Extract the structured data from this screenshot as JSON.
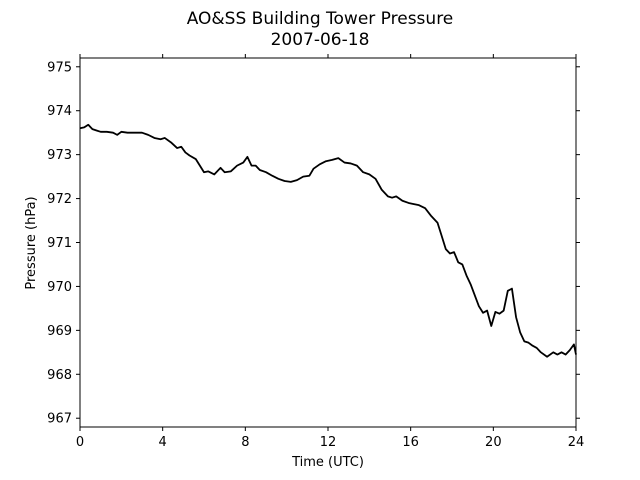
{
  "chart_data": {
    "type": "line",
    "title": "AO&SS Building Tower Pressure",
    "subtitle": "2007-06-18",
    "xlabel": "Time (UTC)",
    "ylabel": "Pressure (hPa)",
    "xlim": [
      0,
      24
    ],
    "ylim": [
      966.8,
      975.2
    ],
    "xticks": [
      0,
      4,
      8,
      12,
      16,
      20,
      24
    ],
    "yticks": [
      967,
      968,
      969,
      970,
      971,
      972,
      973,
      974,
      975
    ],
    "grid": false,
    "line_color": "#000000",
    "series": [
      {
        "x": [
          0.0,
          0.2,
          0.4,
          0.6,
          0.8,
          1.0,
          1.3,
          1.6,
          1.8,
          2.0,
          2.3,
          2.6,
          3.0,
          3.3,
          3.6,
          3.9,
          4.1,
          4.4,
          4.7,
          4.9,
          5.1,
          5.3,
          5.6,
          5.8,
          6.0,
          6.2,
          6.5,
          6.8,
          7.0,
          7.3,
          7.6,
          7.9,
          8.1,
          8.3,
          8.5,
          8.7,
          9.0,
          9.3,
          9.6,
          9.9,
          10.2,
          10.5,
          10.8,
          11.1,
          11.3,
          11.6,
          11.9,
          12.2,
          12.5,
          12.8,
          13.1,
          13.4,
          13.7,
          14.0,
          14.3,
          14.6,
          14.9,
          15.1,
          15.3,
          15.6,
          15.9,
          16.1,
          16.4,
          16.7,
          17.0,
          17.3,
          17.5,
          17.7,
          17.9,
          18.1,
          18.3,
          18.5,
          18.7,
          18.9,
          19.1,
          19.3,
          19.5,
          19.7,
          19.9,
          20.1,
          20.3,
          20.5,
          20.7,
          20.9,
          21.1,
          21.3,
          21.5,
          21.7,
          21.9,
          22.1,
          22.3,
          22.6,
          22.9,
          23.1,
          23.3,
          23.5,
          23.7,
          23.9,
          24.0
        ],
        "y": [
          973.6,
          973.62,
          973.68,
          973.58,
          973.55,
          973.52,
          973.52,
          973.5,
          973.45,
          973.52,
          973.5,
          973.5,
          973.5,
          973.45,
          973.38,
          973.35,
          973.38,
          973.28,
          973.15,
          973.18,
          973.05,
          972.98,
          972.9,
          972.75,
          972.6,
          972.62,
          972.55,
          972.7,
          972.6,
          972.62,
          972.75,
          972.82,
          972.95,
          972.75,
          972.75,
          972.65,
          972.6,
          972.52,
          972.45,
          972.4,
          972.38,
          972.42,
          972.5,
          972.52,
          972.68,
          972.78,
          972.85,
          972.88,
          972.92,
          972.82,
          972.8,
          972.75,
          972.6,
          972.55,
          972.45,
          972.2,
          972.05,
          972.02,
          972.05,
          971.95,
          971.9,
          971.88,
          971.85,
          971.78,
          971.6,
          971.45,
          971.15,
          970.85,
          970.75,
          970.78,
          970.55,
          970.5,
          970.25,
          970.05,
          969.8,
          969.55,
          969.4,
          969.45,
          969.1,
          969.42,
          969.38,
          969.45,
          969.9,
          969.95,
          969.3,
          968.95,
          968.75,
          968.72,
          968.65,
          968.6,
          968.5,
          968.4,
          968.5,
          968.45,
          968.5,
          968.45,
          968.55,
          968.68,
          968.45
        ]
      }
    ]
  }
}
